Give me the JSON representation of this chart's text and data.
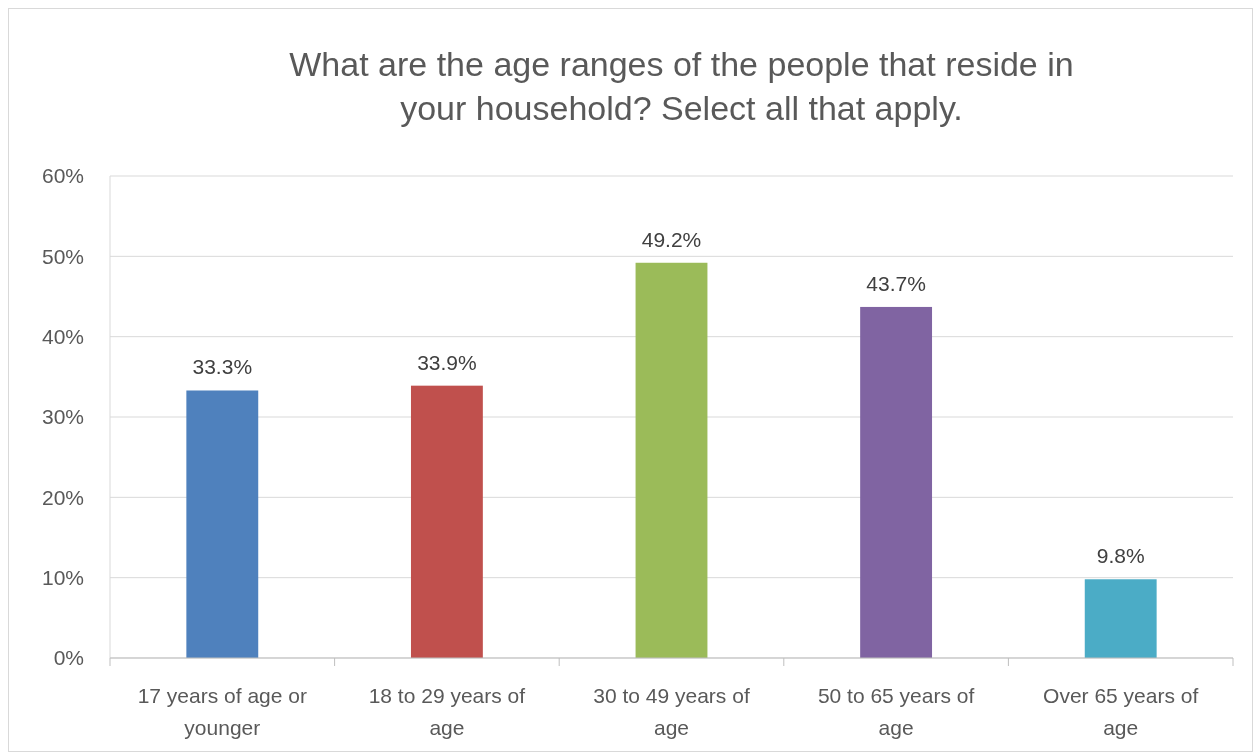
{
  "chart_data": {
    "type": "bar",
    "title": "What are the age ranges of the people that reside in your household? Select all that apply.",
    "categories": [
      "17 years of age or younger",
      "18 to 29 years of age",
      "30 to 49 years of age",
      "50 to 65 years of age",
      "Over 65 years of age"
    ],
    "values": [
      33.3,
      33.9,
      49.2,
      43.7,
      9.8
    ],
    "colors": [
      "#4f81bd",
      "#c0504d",
      "#9bbb59",
      "#8064a2",
      "#4bacc6"
    ],
    "value_labels": [
      "33.3%",
      "33.9%",
      "49.2%",
      "43.7%",
      "9.8%"
    ],
    "ylim": [
      0,
      60
    ],
    "yticks": [
      {
        "value": 0,
        "label": "0%"
      },
      {
        "value": 10,
        "label": "10%"
      },
      {
        "value": 20,
        "label": "20%"
      },
      {
        "value": 30,
        "label": "30%"
      },
      {
        "value": 40,
        "label": "40%"
      },
      {
        "value": 50,
        "label": "50%"
      },
      {
        "value": 60,
        "label": "60%"
      }
    ],
    "grid": "y"
  }
}
